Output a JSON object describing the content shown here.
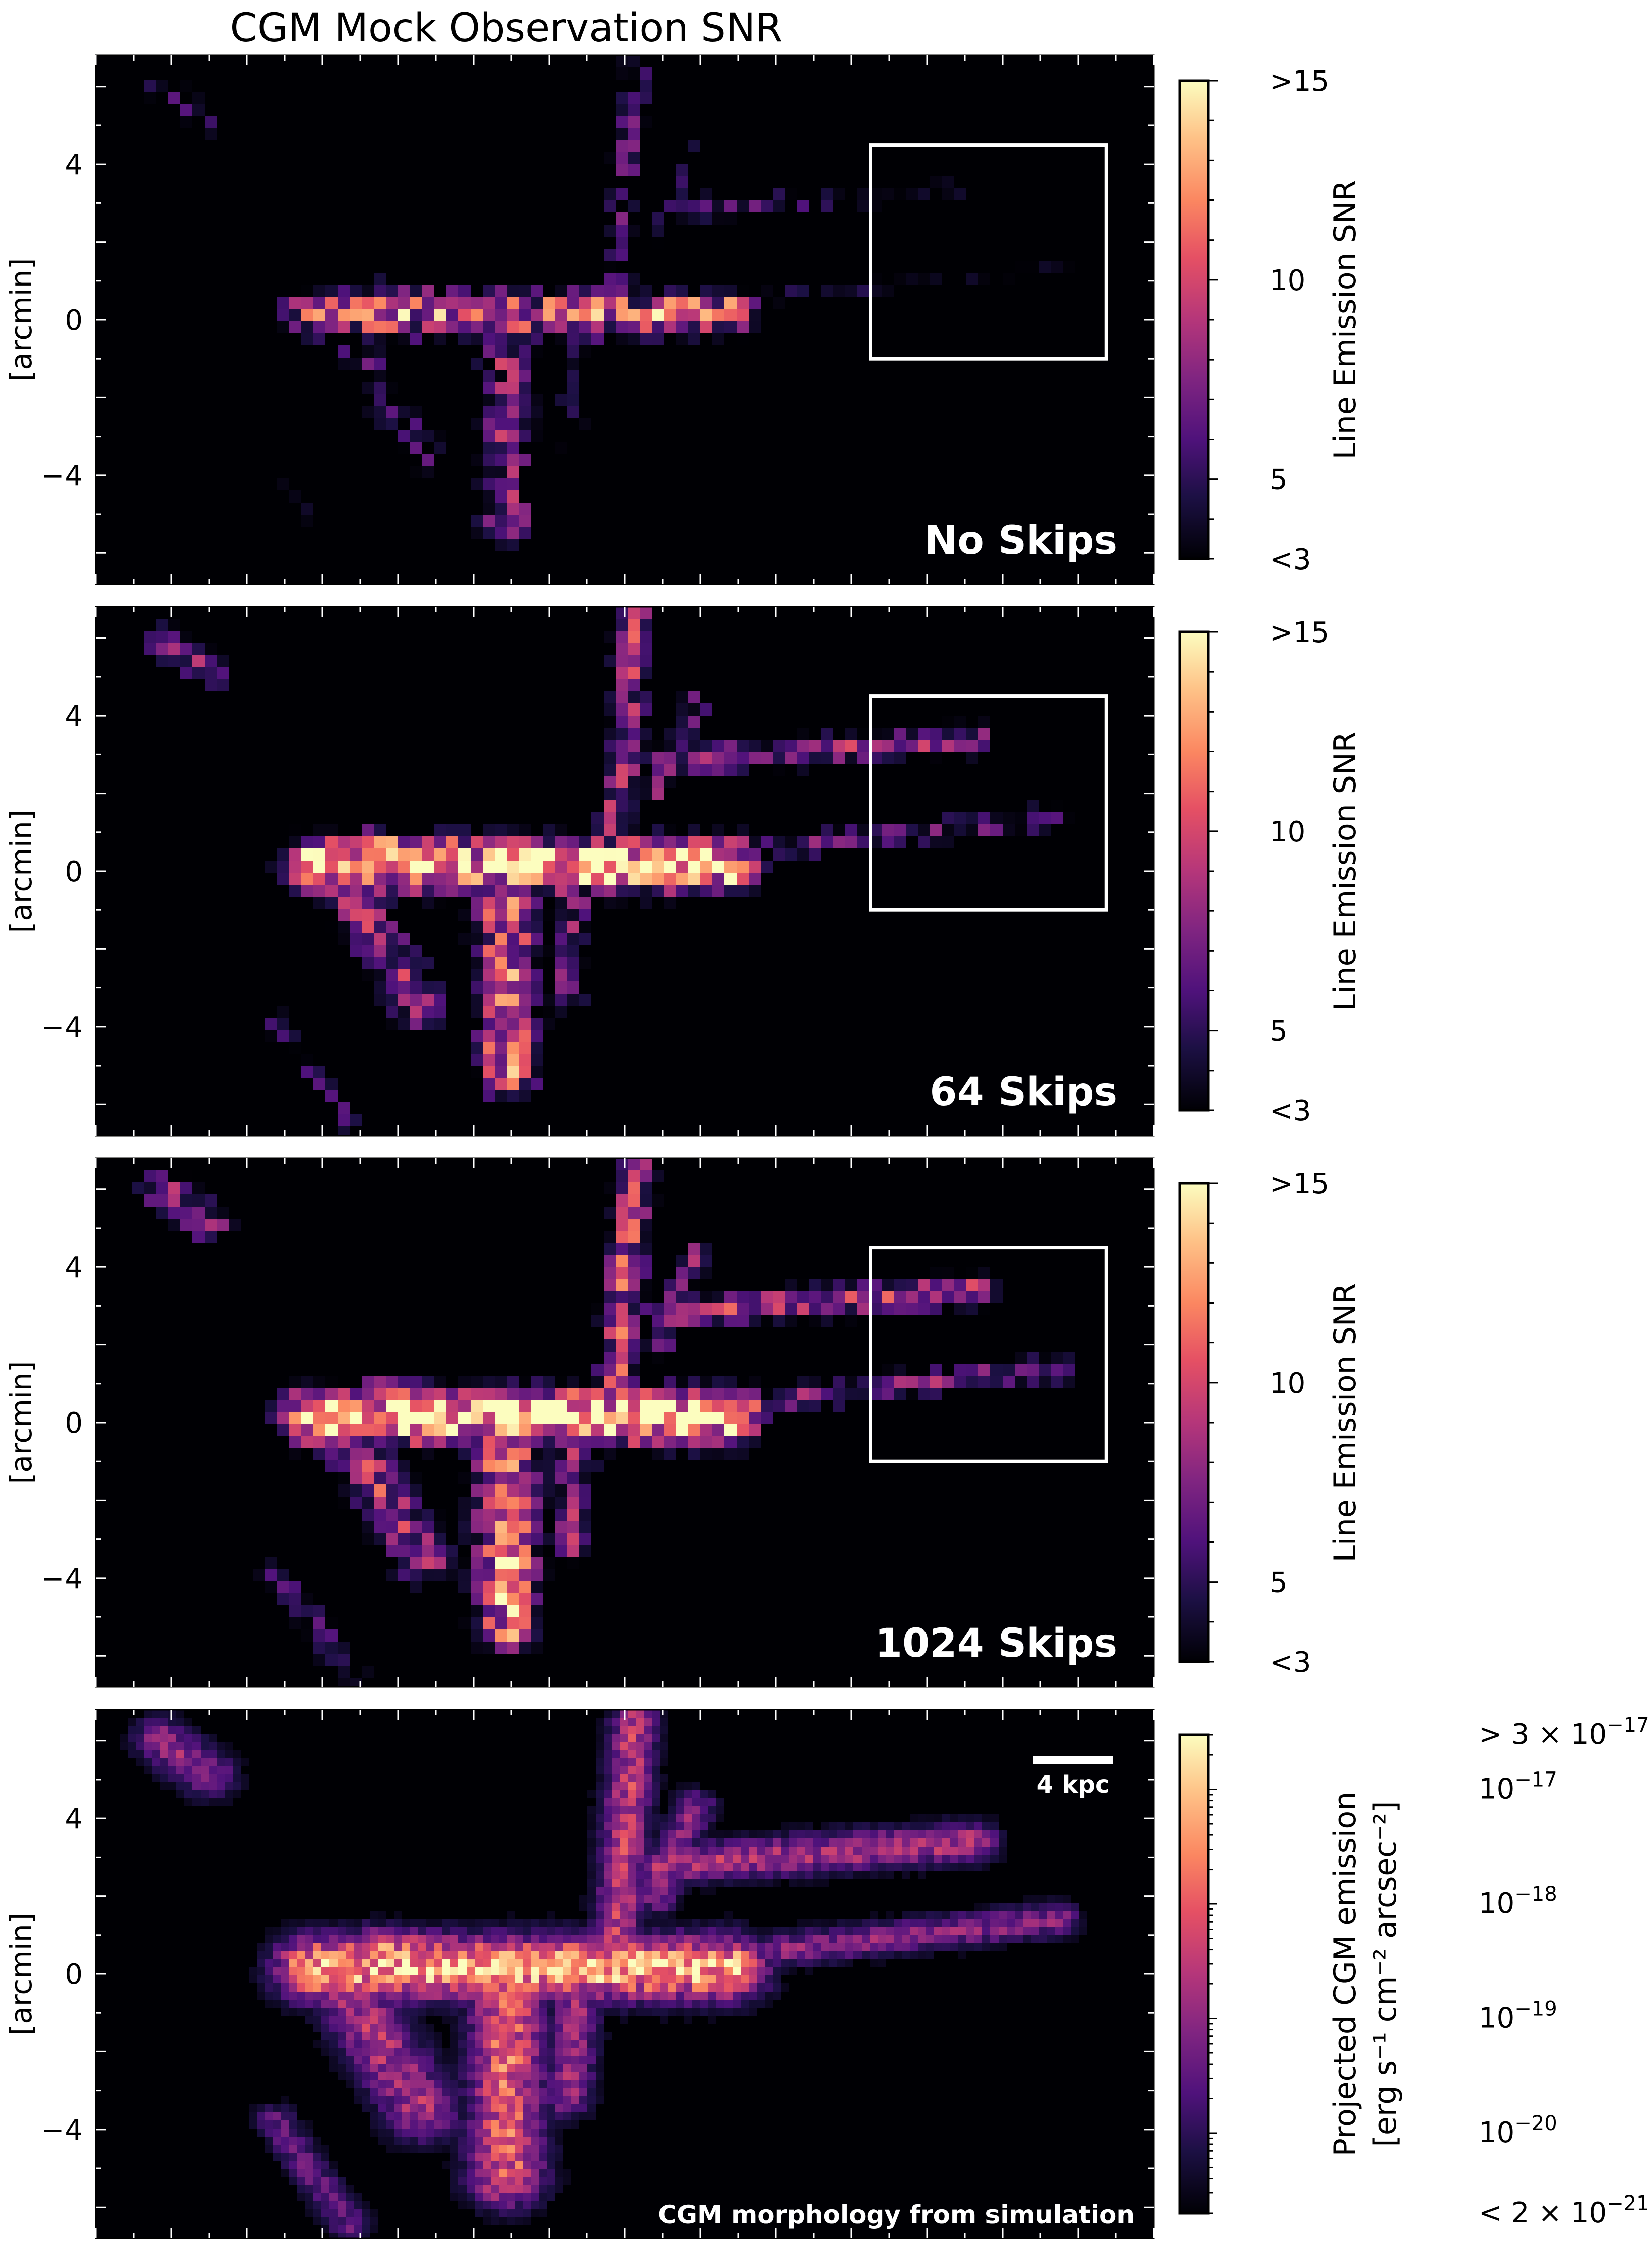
{
  "figure_title": "CGM Mock Observation SNR",
  "chart_data": [
    {
      "type": "heatmap",
      "panel_label": "No Skips",
      "ylabel": "[arcmin]",
      "yticks": [
        4,
        0,
        -4
      ],
      "ylim": [
        -6.8,
        6.8
      ],
      "colorbar": {
        "label": "Line Emission SNR",
        "ticks": [
          ">15",
          "10",
          "5",
          "<3"
        ],
        "tick_values": [
          15,
          10,
          5,
          3
        ],
        "range": [
          3,
          15
        ],
        "colormap": "magma"
      },
      "highlight_box": {
        "x_arcmin": [
          8.0,
          13.0
        ],
        "y_arcmin": [
          -1.0,
          4.5
        ],
        "color": "#ffffff"
      },
      "emission_level": 0.25
    },
    {
      "type": "heatmap",
      "panel_label": "64 Skips",
      "ylabel": "[arcmin]",
      "yticks": [
        4,
        0,
        -4
      ],
      "ylim": [
        -6.8,
        6.8
      ],
      "colorbar": {
        "label": "Line Emission SNR",
        "ticks": [
          ">15",
          "10",
          "5",
          "<3"
        ],
        "tick_values": [
          15,
          10,
          5,
          3
        ],
        "range": [
          3,
          15
        ],
        "colormap": "magma"
      },
      "highlight_box": {
        "x_arcmin": [
          8.0,
          13.0
        ],
        "y_arcmin": [
          -1.0,
          4.5
        ],
        "color": "#ffffff"
      },
      "emission_level": 0.75
    },
    {
      "type": "heatmap",
      "panel_label": "1024 Skips",
      "ylabel": "[arcmin]",
      "yticks": [
        4,
        0,
        -4
      ],
      "ylim": [
        -6.8,
        6.8
      ],
      "colorbar": {
        "label": "Line Emission SNR",
        "ticks": [
          ">15",
          "10",
          "5",
          "<3"
        ],
        "tick_values": [
          15,
          10,
          5,
          3
        ],
        "range": [
          3,
          15
        ],
        "colormap": "magma"
      },
      "highlight_box": {
        "x_arcmin": [
          8.0,
          13.0
        ],
        "y_arcmin": [
          -1.0,
          4.5
        ],
        "color": "#ffffff"
      },
      "emission_level": 0.9
    },
    {
      "type": "heatmap",
      "panel_label": "CGM morphology from simulation",
      "ylabel": "[arcmin]",
      "yticks": [
        4,
        0,
        -4
      ],
      "ylim": [
        -6.8,
        6.8
      ],
      "scale_bar": {
        "label": "4 kpc"
      },
      "colorbar": {
        "label_line1": "Projected CGM emission",
        "label_line2": "[erg s⁻¹ cm⁻² arcsec⁻²]",
        "scale": "log",
        "range": [
          2e-21,
          3e-17
        ],
        "colormap": "magma",
        "tick_labels": [
          {
            "base": "> 3 × 10",
            "exp": "−17",
            "value": 3e-17
          },
          {
            "base": "10",
            "exp": "−17",
            "value": 1e-17
          },
          {
            "base": "10",
            "exp": "−18",
            "value": 1e-18
          },
          {
            "base": "10",
            "exp": "−19",
            "value": 1e-19
          },
          {
            "base": "10",
            "exp": "−20",
            "value": 1e-20
          },
          {
            "base": "< 2 × 10",
            "exp": "−21",
            "value": 2e-21
          }
        ]
      },
      "emission_level": 1.0
    }
  ]
}
